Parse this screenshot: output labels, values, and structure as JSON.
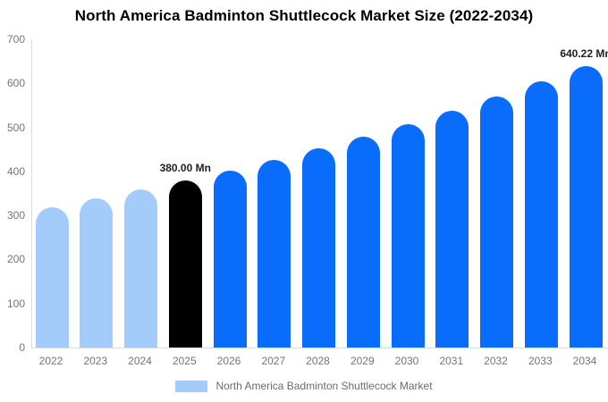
{
  "title": "North America Badminton Shuttlecock Market Size (2022-2034)",
  "legend": {
    "label": "North America Badminton Shuttlecock Market"
  },
  "chart_data": {
    "type": "bar",
    "title": "North America Badminton Shuttlecock Market Size (2022-2034)",
    "unit": "Mn",
    "categories": [
      "2022",
      "2023",
      "2024",
      "2025",
      "2026",
      "2027",
      "2028",
      "2029",
      "2030",
      "2031",
      "2032",
      "2033",
      "2034"
    ],
    "values": [
      319.3,
      338.4,
      358.6,
      380.0,
      402.7,
      426.7,
      452.2,
      479.1,
      507.7,
      538.0,
      570.1,
      604.1,
      640.22
    ],
    "bar_roles": [
      "historical",
      "historical",
      "historical",
      "base_year",
      "forecast",
      "forecast",
      "forecast",
      "forecast",
      "forecast",
      "forecast",
      "forecast",
      "forecast",
      "forecast"
    ],
    "data_labels": [
      {
        "index": 3,
        "text": "380.00 Mn"
      },
      {
        "index": 12,
        "text": "640.22 Mn"
      }
    ],
    "xlabel": "",
    "ylabel": "",
    "ylim": [
      0,
      700
    ],
    "yticks": [
      0,
      100,
      200,
      300,
      400,
      500,
      600,
      700
    ],
    "grid": false,
    "legend_position": "bottom",
    "colors": {
      "historical": "#a3ccfb",
      "base_year": "#000000",
      "forecast": "#0a6cfa",
      "axis_line": "#d9d9d9",
      "tick_text": "#757575",
      "value_label_text": "#1f1f1f",
      "title_text": "#000000"
    }
  }
}
